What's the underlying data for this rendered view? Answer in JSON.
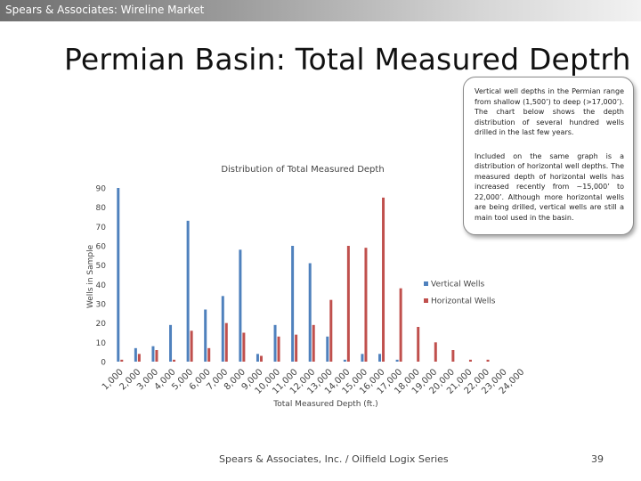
{
  "header": {
    "text": "Spears & Associates:  Wireline Market"
  },
  "slide_title": "Permian Basin:  Total Measured Deptrh",
  "callout": {
    "paragraph1": "Vertical well depths in the Permian range from shallow (1,500’) to deep (>17,000’). The chart below shows the depth distribution of several hundred wells drilled in the last few years.",
    "paragraph2": "Included on the same graph is a distribution of horizontal well depths. The measured depth of horizontal wells has increased recently from ~15,000’ to 22,000’. Although more horizontal wells are being drilled, vertical wells are still a main tool used in the basin."
  },
  "footer": {
    "text": "Spears & Associates, Inc. / Oilfield Logix Series",
    "page_number": "39"
  },
  "colors": {
    "vertical": "#4f81bd",
    "horizontal": "#c0504d"
  },
  "chart_data": {
    "type": "bar",
    "title": "Distribution of Total Measured Depth",
    "xlabel": "Total Measured Depth (ft.)",
    "ylabel": "Wells in Sample",
    "ylim": [
      0,
      90
    ],
    "yticks": [
      "0",
      "10",
      "20",
      "30",
      "40",
      "50",
      "60",
      "70",
      "80",
      "90"
    ],
    "grid": false,
    "legend_position": "right",
    "categories": [
      "1,000",
      "2,000",
      "3,000",
      "4,000",
      "5,000",
      "6,000",
      "7,000",
      "8,000",
      "9,000",
      "10,000",
      "11,000",
      "12,000",
      "13,000",
      "14,000",
      "15,000",
      "16,000",
      "17,000",
      "18,000",
      "19,000",
      "20,000",
      "21,000",
      "22,000",
      "23,000",
      "24,000"
    ],
    "series": [
      {
        "name": "Vertical Wells",
        "values": [
          90,
          7,
          8,
          19,
          73,
          27,
          34,
          58,
          4,
          19,
          60,
          51,
          13,
          1,
          4,
          4,
          1,
          0,
          0,
          0,
          0,
          0,
          0,
          0
        ]
      },
      {
        "name": "Horizontal Wells",
        "values": [
          1,
          4,
          6,
          1,
          16,
          7,
          20,
          15,
          3,
          13,
          14,
          19,
          32,
          60,
          59,
          85,
          38,
          18,
          10,
          6,
          1,
          1,
          0,
          0
        ]
      }
    ]
  }
}
